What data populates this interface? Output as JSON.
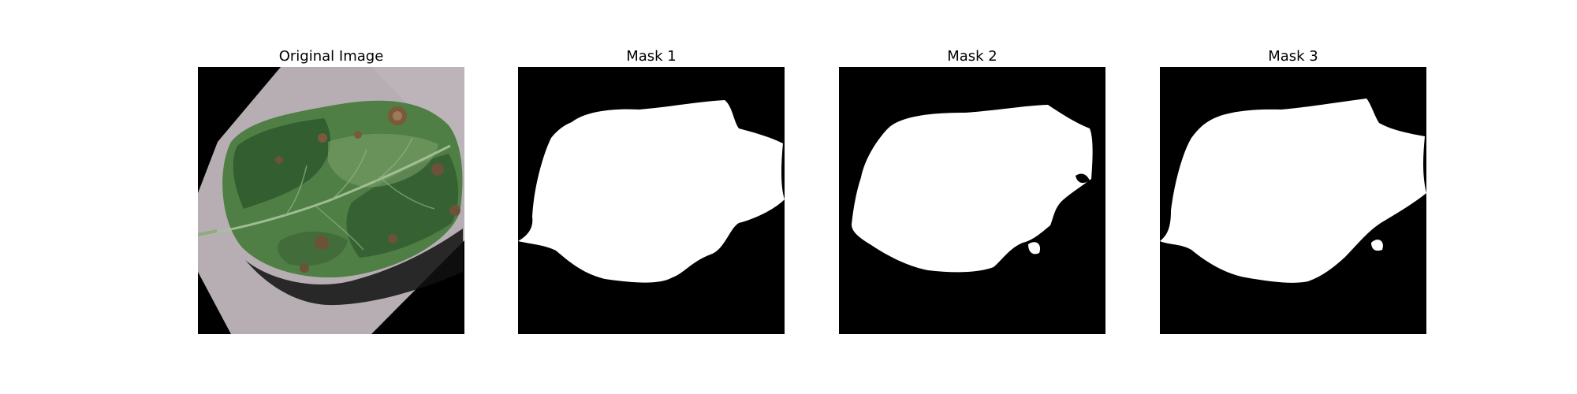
{
  "figure": {
    "panels": [
      {
        "title": "Original Image",
        "kind": "photo",
        "subject": "leaf-photo"
      },
      {
        "title": "Mask 1",
        "kind": "mask",
        "subject": "leaf-mask"
      },
      {
        "title": "Mask 2",
        "kind": "mask",
        "subject": "leaf-mask"
      },
      {
        "title": "Mask 3",
        "kind": "mask",
        "subject": "leaf-mask"
      }
    ],
    "colors": {
      "background": "#ffffff",
      "title_text": "#000000",
      "mask_background": "#000000",
      "mask_foreground": "#ffffff",
      "leaf_green_dark": "#2f5b2e",
      "leaf_green_mid": "#4f7f45",
      "leaf_green_light": "#7ea36a",
      "surface_gray": "#b7aeb3",
      "lesion_brown": "#7a5a3a"
    }
  }
}
